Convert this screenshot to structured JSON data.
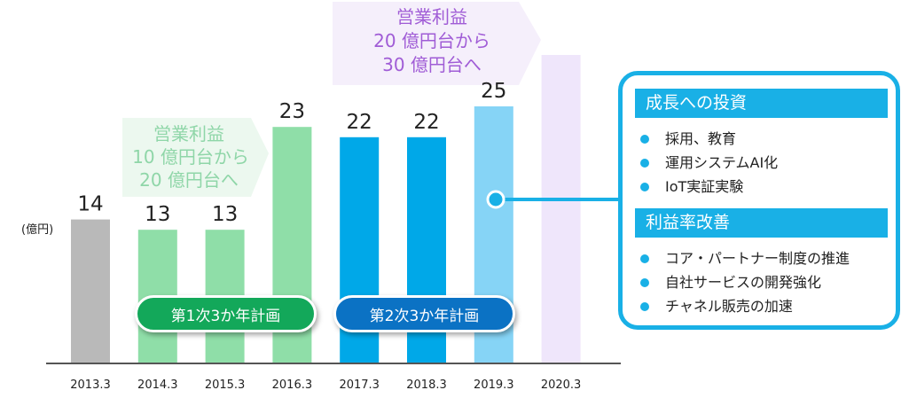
{
  "chart_data": {
    "type": "bar",
    "unit_label": "(億円)",
    "categories": [
      "2013.3",
      "2014.3",
      "2015.3",
      "2016.3",
      "2017.3",
      "2018.3",
      "2019.3",
      "2020.3"
    ],
    "values": [
      14,
      13,
      13,
      23,
      22,
      22,
      25,
      30
    ],
    "value_labels": [
      "14",
      "13",
      "13",
      "23",
      "22",
      "22",
      "25",
      ""
    ],
    "bar_colors": [
      "#b9b9b9",
      "#8fdea8",
      "#8fdea8",
      "#8fdea8",
      "#00a8e8",
      "#00a8e8",
      "#86d4f6",
      "#efe6fb"
    ],
    "ylim": [
      0,
      30
    ]
  },
  "annotations": {
    "arrow1": {
      "lines": [
        "営業利益",
        "10 億円台から",
        "20 億円台へ"
      ],
      "color": "#8fd6a8"
    },
    "arrow2": {
      "lines": [
        "営業利益",
        "20 億円台から",
        "30 億円台へ"
      ],
      "color": "#a05cd6"
    }
  },
  "plans": {
    "plan1": {
      "label": "第1次3か年計画",
      "color": "#13a85a"
    },
    "plan2": {
      "label": "第2次3か年計画",
      "color": "#0b72c4"
    }
  },
  "panel": {
    "section1": {
      "title": "成長への投資",
      "items": [
        "採用、教育",
        "運用システムAI化",
        "IoT実証実験"
      ]
    },
    "section2": {
      "title": "利益率改善",
      "items": [
        "コア・パートナー制度の推進",
        "自社サービスの開発強化",
        "チャネル販売の加速"
      ]
    }
  }
}
